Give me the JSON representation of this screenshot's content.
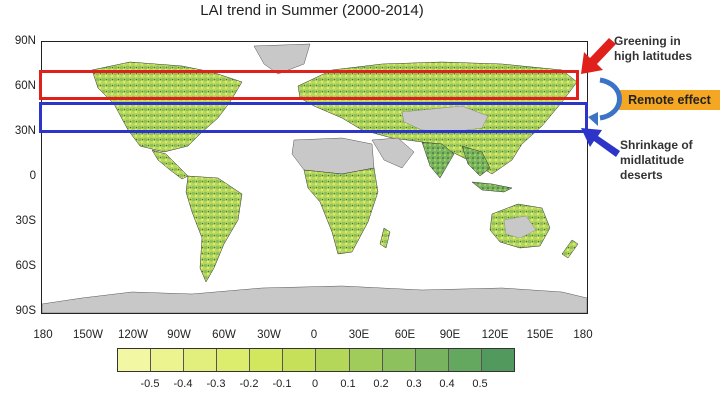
{
  "title": "LAI trend in Summer (2000-2014)",
  "y_axis_labels": [
    "90N",
    "60N",
    "30N",
    "0",
    "30S",
    "60S",
    "90S"
  ],
  "x_axis_labels": [
    "180",
    "150W",
    "120W",
    "90W",
    "60W",
    "30W",
    "0",
    "30E",
    "60E",
    "90E",
    "120E",
    "150E",
    "180"
  ],
  "legend": {
    "labels": [
      "-0.5",
      "-0.4",
      "-0.3",
      "-0.2",
      "-0.1",
      "0",
      "0.1",
      "0.2",
      "0.3",
      "0.4",
      "0.5"
    ],
    "colors": [
      "#f2f7a4",
      "#ebf48f",
      "#e3ef7c",
      "#dcec6c",
      "#d3e75e",
      "#c6e05a",
      "#b4d75a",
      "#a0cc5c",
      "#8cc15e",
      "#78b45f",
      "#64a860",
      "#52995e"
    ]
  },
  "annotations": {
    "greening": "Greening in\nhigh latitudes",
    "remote": "Remote effect",
    "shrinkage": "Shrinkage of\nmidlatitude\ndeserts"
  },
  "colors": {
    "land_gray": "#c8c8c8",
    "box_high_lat": "#e0201a",
    "box_mid_lat": "#2c35c8",
    "remote_bg": "#f5a623",
    "arrow_blue": "#3b73c7"
  }
}
